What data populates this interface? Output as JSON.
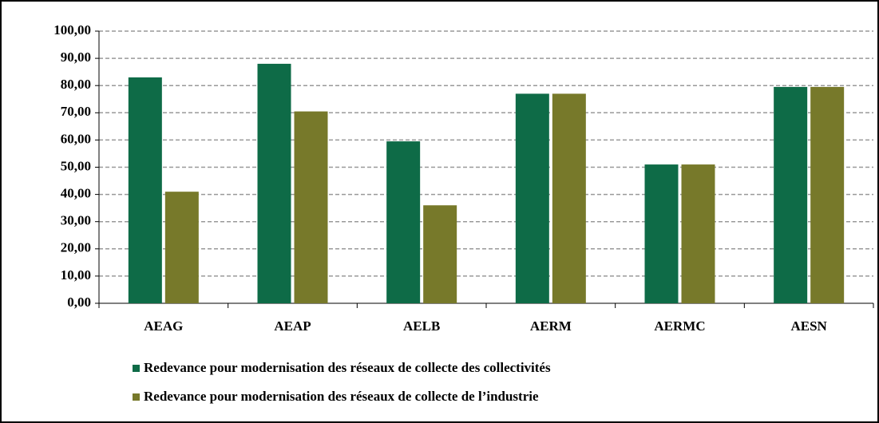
{
  "chart_data": {
    "type": "bar",
    "categories": [
      "AEAG",
      "AEAP",
      "AELB",
      "AERM",
      "AERMC",
      "AESN"
    ],
    "series": [
      {
        "name": "Redevance pour modernisation des réseaux de collecte des collectivités",
        "color": "#0e6b47",
        "values": [
          83,
          88,
          59.5,
          77,
          51,
          79.5
        ]
      },
      {
        "name": "Redevance pour modernisation des réseaux de collecte de l’industrie",
        "color": "#77792a",
        "values": [
          41,
          70.5,
          36,
          77,
          51,
          79.5
        ]
      }
    ],
    "ylim": [
      0,
      100
    ],
    "yticks": [
      {
        "value": 0,
        "label": "0,00"
      },
      {
        "value": 10,
        "label": "10,00"
      },
      {
        "value": 20,
        "label": "20,00"
      },
      {
        "value": 30,
        "label": "30,00"
      },
      {
        "value": 40,
        "label": "40,00"
      },
      {
        "value": 50,
        "label": "50,00"
      },
      {
        "value": 60,
        "label": "60,00"
      },
      {
        "value": 70,
        "label": "70,00"
      },
      {
        "value": 80,
        "label": "80,00"
      },
      {
        "value": 90,
        "label": "90,00"
      },
      {
        "value": 100,
        "label": "100,00"
      }
    ],
    "grid": true,
    "legend": "bottom"
  }
}
